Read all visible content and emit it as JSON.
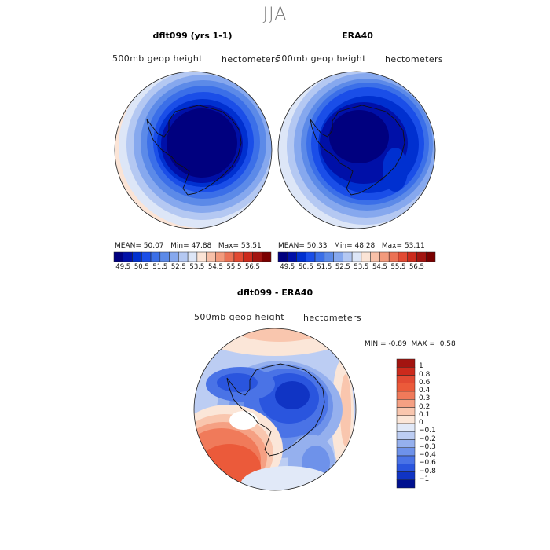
{
  "figure": {
    "season": "JJA"
  },
  "panels": [
    {
      "title": "dflt099 (yrs 1-1)",
      "field_label": "500mb geop height",
      "units_label": "hectometers",
      "stats": {
        "mean_label": "MEAN=",
        "mean": "50.07",
        "min_label": "Min=",
        "min": "47.88",
        "max_label": "Max=",
        "max": "53.51"
      }
    },
    {
      "title": "ERA40",
      "field_label": "500mb geop height",
      "units_label": "hectometers",
      "stats": {
        "mean_label": "MEAN=",
        "mean": "50.33",
        "min_label": "Min=",
        "min": "48.28",
        "max_label": "Max=",
        "max": "53.11"
      }
    }
  ],
  "abs_colorbar": {
    "colors": [
      "#00007f",
      "#0010a8",
      "#0030d0",
      "#1a4ee8",
      "#3b6fe8",
      "#5c8ae8",
      "#86a8ee",
      "#b4c8f2",
      "#dde6f7",
      "#fbe4d6",
      "#f7c0a8",
      "#f29a7c",
      "#eb7255",
      "#e24a33",
      "#cc2a1c",
      "#a31410",
      "#7a0000"
    ],
    "tick_labels": [
      "49.5",
      "50.5",
      "51.5",
      "52.5",
      "53.5",
      "54.5",
      "55.5",
      "56.5"
    ]
  },
  "diff_panel": {
    "title": "dflt099 - ERA40",
    "field_label": "500mb geop height",
    "units_label": "hectometers",
    "stats": {
      "min_label": "MIN =",
      "min": "-0.89",
      "max_label": "MAX =",
      "max": "0.58"
    }
  },
  "diff_colorbar": {
    "colors": [
      "#a31410",
      "#cc2a1c",
      "#e24a33",
      "#eb5a3a",
      "#f07a5a",
      "#f5a083",
      "#f9c6ae",
      "#fbe6d8",
      "#e1e9f8",
      "#bccdf3",
      "#95b0ee",
      "#6e92ea",
      "#4a73e6",
      "#2a55de",
      "#1034c4",
      "#00108f"
    ],
    "tick_labels": [
      "1",
      "0.8",
      "0.6",
      "0.4",
      "0.3",
      "0.2",
      "0.1",
      "0",
      "−0.1",
      "−0.2",
      "−0.3",
      "−0.4",
      "−0.6",
      "−0.8",
      "−1"
    ]
  }
}
